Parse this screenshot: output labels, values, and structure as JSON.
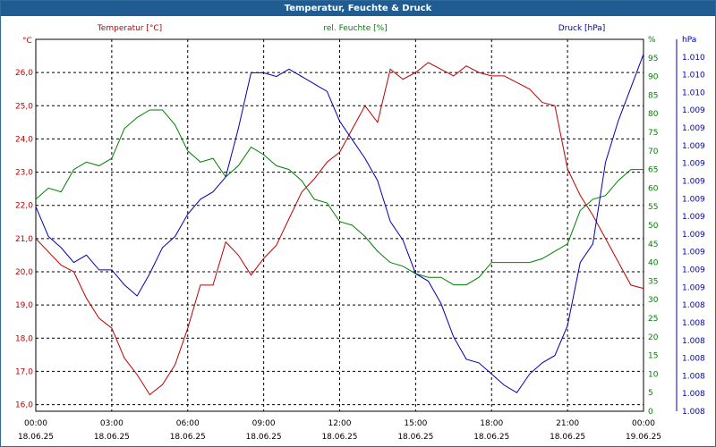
{
  "window": {
    "title": "Temperatur, Feuchte & Druck"
  },
  "chart_data": {
    "type": "line",
    "title": "Temperatur, Feuchte & Druck",
    "grid": true,
    "colors": {
      "temperature": "#c00000",
      "humidity": "#008000",
      "pressure": "#0000b0",
      "titlebar": "#1f5c92"
    },
    "x_ticks": [
      {
        "time": "00:00",
        "date": "18.06.25"
      },
      {
        "time": "03:00",
        "date": "18.06.25"
      },
      {
        "time": "06:00",
        "date": "18.06.25"
      },
      {
        "time": "09:00",
        "date": "18.06.25"
      },
      {
        "time": "12:00",
        "date": "18.06.25"
      },
      {
        "time": "15:00",
        "date": "18.06.25"
      },
      {
        "time": "18:00",
        "date": "18.06.25"
      },
      {
        "time": "21:00",
        "date": "18.06.25"
      },
      {
        "time": "00:00",
        "date": "19.06.25"
      }
    ],
    "x_hours_range": [
      0,
      24
    ],
    "axes": {
      "temperature": {
        "unit": "°C",
        "ylim": [
          15.8,
          27.0
        ],
        "ticks": [
          16.0,
          17.0,
          18.0,
          19.0,
          20.0,
          21.0,
          22.0,
          23.0,
          24.0,
          25.0,
          26.0
        ],
        "tick_labels": [
          "16,0",
          "17,0",
          "18,0",
          "19,0",
          "20,0",
          "21,0",
          "22,0",
          "23,0",
          "24,0",
          "25,0",
          "26,0"
        ]
      },
      "humidity": {
        "unit": "%",
        "ylim": [
          0,
          100
        ],
        "ticks": [
          0,
          5,
          10,
          15,
          20,
          25,
          30,
          35,
          40,
          45,
          50,
          55,
          60,
          65,
          70,
          75,
          80,
          85,
          90,
          95,
          100
        ],
        "tick_labels": [
          "0",
          "5",
          "10",
          "15",
          "20",
          "25",
          "30",
          "35",
          "40",
          "45",
          "50",
          "55",
          "60",
          "65",
          "70",
          "75",
          "80",
          "85",
          "90",
          "95",
          "%"
        ]
      },
      "pressure": {
        "unit": "hPa",
        "tick_labels": [
          "1.008",
          "1.008",
          "1.008",
          "1.008",
          "1.008",
          "1.008",
          "1.008",
          "1.009",
          "1.009",
          "1.009",
          "1.009",
          "1.009",
          "1.009",
          "1.009",
          "1.009",
          "1.009",
          "1.009",
          "1.009",
          "1.010",
          "1.010",
          "1.010",
          "hPa"
        ]
      }
    },
    "series": [
      {
        "name": "Temperatur [°C]",
        "axis": "temperature",
        "x": [
          0,
          0.5,
          1,
          1.5,
          2,
          2.5,
          3,
          3.5,
          4,
          4.5,
          5,
          5.5,
          6,
          6.5,
          7,
          7.5,
          8,
          8.5,
          9,
          9.5,
          10,
          10.5,
          11,
          11.5,
          12,
          12.5,
          13,
          13.5,
          14,
          14.5,
          15,
          15.5,
          16,
          16.5,
          17,
          17.5,
          18,
          18.5,
          19,
          19.5,
          20,
          20.5,
          21,
          21.5,
          22,
          22.5,
          23,
          23.5,
          24
        ],
        "y": [
          21.0,
          20.6,
          20.2,
          20.0,
          19.2,
          18.6,
          18.3,
          17.4,
          16.9,
          16.3,
          16.6,
          17.2,
          18.3,
          19.6,
          19.6,
          20.9,
          20.5,
          19.9,
          20.4,
          20.8,
          21.6,
          22.4,
          22.8,
          23.3,
          23.6,
          24.3,
          25.0,
          24.5,
          26.1,
          25.8,
          26.0,
          26.3,
          26.1,
          25.9,
          26.2,
          26.0,
          25.9,
          25.9,
          25.7,
          25.5,
          25.1,
          25.0,
          23.1,
          22.3,
          21.7,
          21.0,
          20.3,
          19.6,
          19.5
        ]
      },
      {
        "name": "rel. Feuchte [%]",
        "axis": "humidity",
        "x": [
          0,
          0.5,
          1,
          1.5,
          2,
          2.5,
          3,
          3.5,
          4,
          4.5,
          5,
          5.5,
          6,
          6.5,
          7,
          7.5,
          8,
          8.5,
          9,
          9.5,
          10,
          10.5,
          11,
          11.5,
          12,
          12.5,
          13,
          13.5,
          14,
          14.5,
          15,
          15.5,
          16,
          16.5,
          17,
          17.5,
          18,
          18.5,
          19,
          19.5,
          20,
          20.5,
          21,
          21.5,
          22,
          22.5,
          23,
          23.5,
          24
        ],
        "y": [
          57,
          60,
          59,
          65,
          67,
          66,
          68,
          76,
          79,
          81,
          81,
          77,
          70,
          67,
          68,
          63,
          66,
          71,
          69,
          66,
          65,
          62,
          57,
          56,
          51,
          50,
          47,
          43,
          40,
          39,
          37,
          36,
          36,
          34,
          34,
          36,
          40,
          40,
          40,
          40,
          41,
          43,
          45,
          54,
          57,
          58,
          62,
          65,
          65
        ]
      },
      {
        "name": "Druck [hPa]",
        "axis": "pressure",
        "x": [
          0,
          0.5,
          1,
          1.5,
          2,
          2.5,
          3,
          3.5,
          4,
          4.5,
          5,
          5.5,
          6,
          6.5,
          7,
          7.5,
          8,
          8.5,
          9,
          9.5,
          10,
          10.5,
          11,
          11.5,
          12,
          12.5,
          13,
          13.5,
          14,
          14.5,
          15,
          15.5,
          16,
          16.5,
          17,
          17.5,
          18,
          18.5,
          19,
          19.5,
          20,
          20.5,
          21,
          21.5,
          22,
          22.5,
          23,
          23.5,
          24
        ],
        "y": [
          55,
          47,
          44,
          40,
          42,
          38,
          38,
          34,
          31,
          37,
          44,
          47,
          53,
          57,
          59,
          63,
          76,
          91,
          91,
          90,
          92,
          90,
          88,
          86,
          78,
          73,
          68,
          62,
          51,
          46,
          37,
          35,
          29,
          20,
          14,
          13,
          10,
          7,
          5,
          10,
          13,
          15,
          23,
          40,
          45,
          67,
          78,
          87,
          96
        ]
      }
    ]
  }
}
